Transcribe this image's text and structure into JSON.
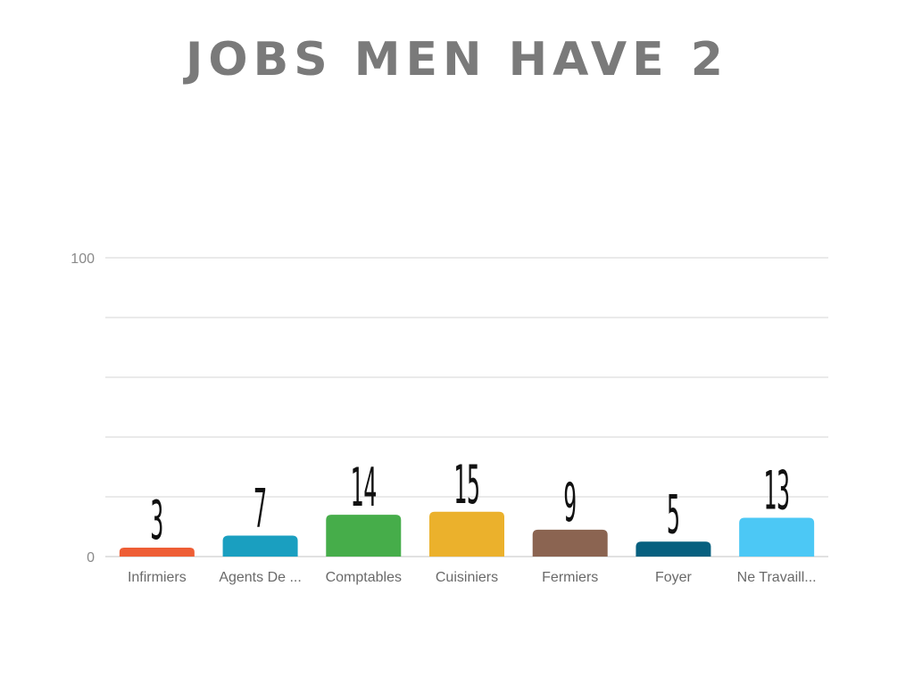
{
  "chart_data": {
    "type": "bar",
    "title": "JOBS MEN HAVE 2",
    "xlabel": "",
    "ylabel": "",
    "ylim": [
      0,
      100
    ],
    "ticks_labeled": [
      "0",
      "100"
    ],
    "grid": true,
    "categories": [
      "Infirmiers",
      "Agents De ...",
      "Comptables",
      "Cuisiniers",
      "Fermiers",
      "Foyer",
      "Ne Travaill..."
    ],
    "values": [
      3,
      7,
      14,
      15,
      9,
      5,
      13
    ],
    "colors": [
      "#ee5e35",
      "#1a9fc0",
      "#46ad4a",
      "#ebb12c",
      "#8b6451",
      "#07607f",
      "#4cc8f5"
    ]
  }
}
